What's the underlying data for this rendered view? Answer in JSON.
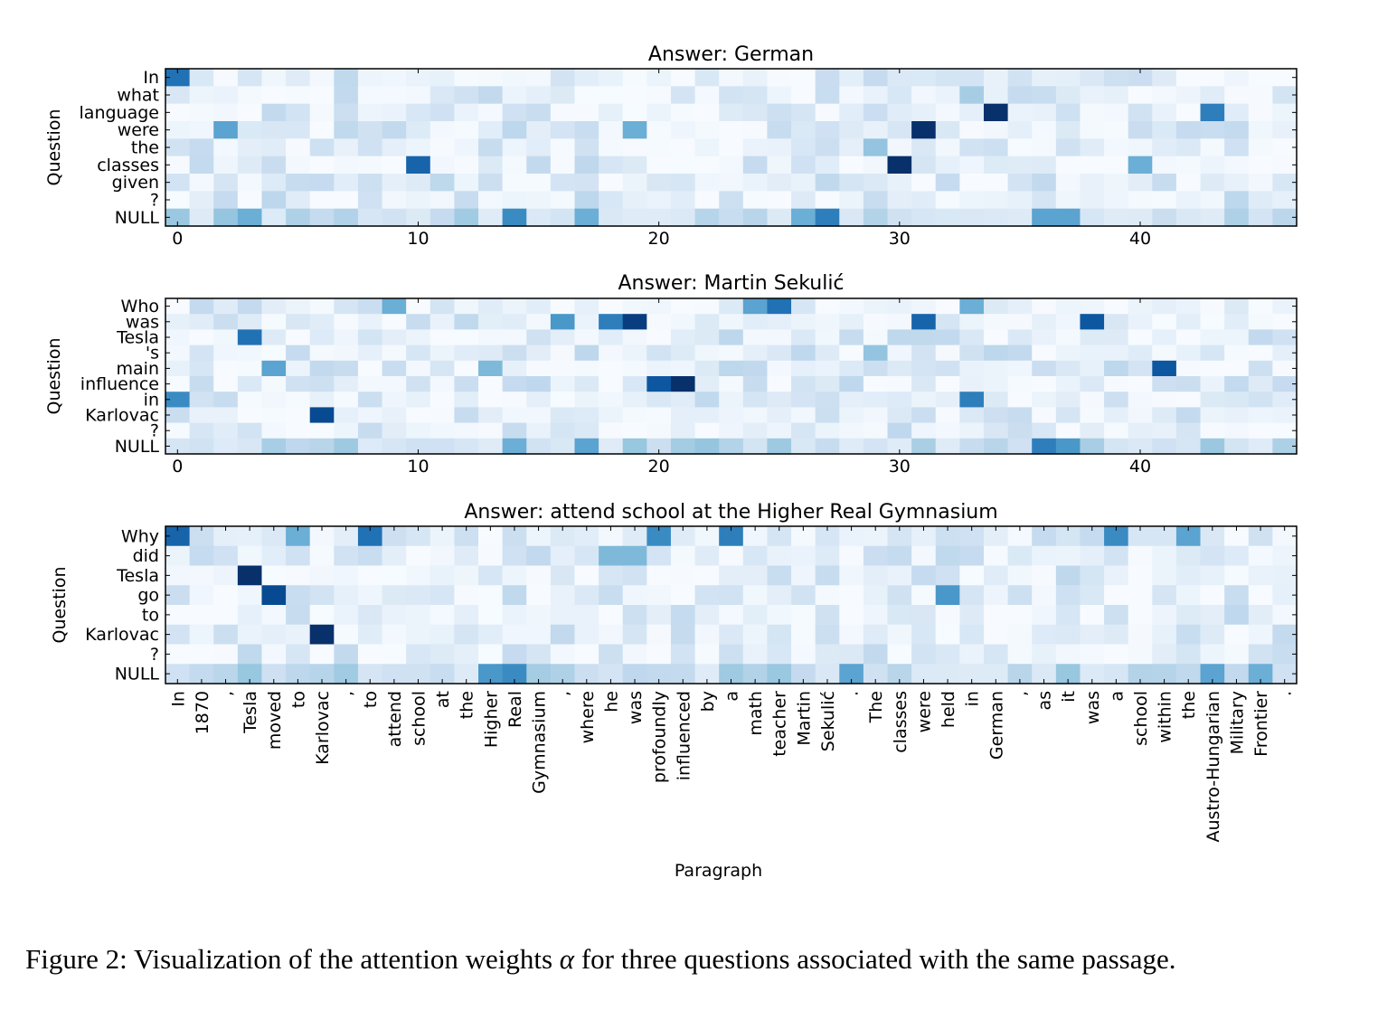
{
  "figure": {
    "xlabel": "Paragraph",
    "ylabel": "Question",
    "xticks": [
      0,
      10,
      20,
      30,
      40
    ],
    "colormap": [
      "#f7fbff",
      "#deebf7",
      "#c6dbef",
      "#9ecae1",
      "#6baed6",
      "#4292c6",
      "#2171b5",
      "#08519c",
      "#08306b"
    ]
  },
  "chart_data": [
    {
      "type": "heatmap",
      "title": "Answer: German",
      "xlabel": "",
      "ylabel": "Question",
      "xlim": [
        0,
        47
      ],
      "rows": [
        "In",
        "what",
        "language",
        "were",
        "the",
        "classes",
        "given",
        "?",
        "NULL"
      ],
      "peaks": [
        {
          "row": 0,
          "col": 0,
          "value": 0.75
        },
        {
          "row": 2,
          "col": 34,
          "value": 1.0
        },
        {
          "row": 2,
          "col": 43,
          "value": 0.7
        },
        {
          "row": 3,
          "col": 31,
          "value": 1.0
        },
        {
          "row": 3,
          "col": 2,
          "value": 0.55
        },
        {
          "row": 3,
          "col": 19,
          "value": 0.5
        },
        {
          "row": 5,
          "col": 10,
          "value": 0.8
        },
        {
          "row": 5,
          "col": 30,
          "value": 1.0
        },
        {
          "row": 5,
          "col": 40,
          "value": 0.5
        },
        {
          "row": 8,
          "col": 14,
          "value": 0.65
        },
        {
          "row": 8,
          "col": 27,
          "value": 0.7
        },
        {
          "row": 8,
          "col": 36,
          "value": 0.55
        },
        {
          "row": 8,
          "col": 37,
          "value": 0.55
        },
        {
          "row": 8,
          "col": 3,
          "value": 0.5
        },
        {
          "row": 8,
          "col": 17,
          "value": 0.5
        },
        {
          "row": 8,
          "col": 26,
          "value": 0.5
        },
        {
          "row": 4,
          "col": 29,
          "value": 0.4
        },
        {
          "row": 1,
          "col": 33,
          "value": 0.35
        }
      ]
    },
    {
      "type": "heatmap",
      "title": "Answer: Martin Sekulić",
      "xlabel": "",
      "ylabel": "Question",
      "xlim": [
        0,
        47
      ],
      "rows": [
        "Who",
        "was",
        "Tesla",
        "'s",
        "main",
        "influence",
        "in",
        "Karlovac",
        "?",
        "NULL"
      ],
      "peaks": [
        {
          "row": 0,
          "col": 25,
          "value": 0.75
        },
        {
          "row": 0,
          "col": 24,
          "value": 0.55
        },
        {
          "row": 0,
          "col": 9,
          "value": 0.5
        },
        {
          "row": 0,
          "col": 33,
          "value": 0.5
        },
        {
          "row": 1,
          "col": 19,
          "value": 0.95
        },
        {
          "row": 1,
          "col": 18,
          "value": 0.7
        },
        {
          "row": 1,
          "col": 16,
          "value": 0.6
        },
        {
          "row": 1,
          "col": 31,
          "value": 0.8
        },
        {
          "row": 1,
          "col": 38,
          "value": 0.85
        },
        {
          "row": 2,
          "col": 3,
          "value": 0.75
        },
        {
          "row": 3,
          "col": 29,
          "value": 0.4
        },
        {
          "row": 4,
          "col": 41,
          "value": 0.85
        },
        {
          "row": 4,
          "col": 4,
          "value": 0.55
        },
        {
          "row": 4,
          "col": 13,
          "value": 0.45
        },
        {
          "row": 5,
          "col": 20,
          "value": 0.85
        },
        {
          "row": 5,
          "col": 21,
          "value": 1.0
        },
        {
          "row": 6,
          "col": 0,
          "value": 0.65
        },
        {
          "row": 6,
          "col": 33,
          "value": 0.7
        },
        {
          "row": 7,
          "col": 6,
          "value": 0.9
        },
        {
          "row": 9,
          "col": 36,
          "value": 0.7
        },
        {
          "row": 9,
          "col": 37,
          "value": 0.6
        },
        {
          "row": 9,
          "col": 17,
          "value": 0.55
        },
        {
          "row": 9,
          "col": 14,
          "value": 0.5
        }
      ]
    },
    {
      "type": "heatmap",
      "title": "Answer: attend school at the Higher Real Gymnasium",
      "xlabel": "Paragraph",
      "ylabel": "Question",
      "xlim": [
        0,
        47
      ],
      "rows": [
        "Why",
        "did",
        "Tesla",
        "go",
        "to",
        "Karlovac",
        "?",
        "NULL"
      ],
      "x_tokens": [
        "In",
        "1870",
        ",",
        "Tesla",
        "moved",
        "to",
        "Karlovac",
        ",",
        "to",
        "attend",
        "school",
        "at",
        "the",
        "Higher",
        "Real",
        "Gymnasium",
        ",",
        "where",
        "he",
        "was",
        "profoundly",
        "influenced",
        "by",
        "a",
        "math",
        "teacher",
        "Martin",
        "Sekulić",
        ".",
        "The",
        "classes",
        "were",
        "held",
        "in",
        "German",
        ",",
        "as",
        "it",
        "was",
        "a",
        "school",
        "within",
        "the",
        "Austro-Hungarian",
        "Military",
        "Frontier",
        "."
      ],
      "peaks": [
        {
          "row": 0,
          "col": 0,
          "value": 0.8
        },
        {
          "row": 0,
          "col": 8,
          "value": 0.75
        },
        {
          "row": 0,
          "col": 20,
          "value": 0.65
        },
        {
          "row": 0,
          "col": 23,
          "value": 0.7
        },
        {
          "row": 0,
          "col": 39,
          "value": 0.65
        },
        {
          "row": 0,
          "col": 42,
          "value": 0.55
        },
        {
          "row": 0,
          "col": 5,
          "value": 0.5
        },
        {
          "row": 2,
          "col": 3,
          "value": 1.0
        },
        {
          "row": 3,
          "col": 4,
          "value": 0.9
        },
        {
          "row": 3,
          "col": 32,
          "value": 0.6
        },
        {
          "row": 5,
          "col": 6,
          "value": 1.0
        },
        {
          "row": 7,
          "col": 13,
          "value": 0.6
        },
        {
          "row": 7,
          "col": 14,
          "value": 0.65
        },
        {
          "row": 7,
          "col": 28,
          "value": 0.55
        },
        {
          "row": 7,
          "col": 43,
          "value": 0.55
        },
        {
          "row": 7,
          "col": 45,
          "value": 0.5
        },
        {
          "row": 1,
          "col": 18,
          "value": 0.45
        },
        {
          "row": 1,
          "col": 19,
          "value": 0.45
        }
      ]
    }
  ],
  "caption": {
    "text_before": "Figure 2:  Visualization of the attention weights ",
    "symbol": "α",
    "text_after": " for three questions associated with the same passage."
  }
}
